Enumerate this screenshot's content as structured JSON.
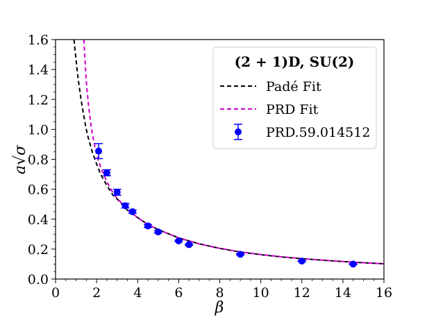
{
  "chart_data": {
    "type": "line",
    "title": "",
    "xlabel": "β",
    "ylabel": "a√σ",
    "xlim": [
      0,
      16
    ],
    "ylim": [
      0,
      1.6
    ],
    "x_ticks": [
      0,
      2,
      4,
      6,
      8,
      10,
      12,
      14,
      16
    ],
    "y_ticks": [
      0.0,
      0.2,
      0.4,
      0.6,
      0.8,
      1.0,
      1.2,
      1.4,
      1.6
    ],
    "x_tick_labels": [
      "0",
      "2",
      "4",
      "6",
      "8",
      "10",
      "12",
      "14",
      "16"
    ],
    "y_tick_labels": [
      "0.0",
      "0.2",
      "0.4",
      "0.6",
      "0.8",
      "1.0",
      "1.2",
      "1.4",
      "1.6"
    ],
    "grid": false,
    "legend_position": "top-right",
    "legend_title": "(2 + 1)D, SU(2)",
    "series": [
      {
        "name": "Padé Fit",
        "style": "dashed",
        "color": "#000000",
        "x": [
          0.9,
          1.0,
          1.1,
          1.2,
          1.3,
          1.4,
          1.5,
          1.6,
          1.8,
          2.0,
          2.2,
          2.5,
          2.8,
          3.0,
          3.5,
          4.0,
          4.5,
          5.0,
          6.0,
          7.0,
          8.0,
          9.0,
          10.0,
          11.0,
          12.0,
          13.0,
          14.0,
          15.0,
          16.0
        ],
        "y": [
          1.6,
          1.46,
          1.34,
          1.24,
          1.15,
          1.07,
          1.0,
          0.94,
          0.845,
          0.77,
          0.7,
          0.625,
          0.56,
          0.535,
          0.46,
          0.41,
          0.365,
          0.33,
          0.275,
          0.235,
          0.205,
          0.18,
          0.163,
          0.148,
          0.136,
          0.126,
          0.117,
          0.109,
          0.102
        ]
      },
      {
        "name": "PRD Fit",
        "style": "dashed",
        "color": "#cc00cc",
        "x": [
          1.38,
          1.45,
          1.5,
          1.6,
          1.7,
          1.8,
          1.9,
          2.0,
          2.2,
          2.5,
          2.8,
          3.0,
          3.5,
          4.0,
          4.5,
          5.0,
          6.0,
          7.0,
          8.0,
          9.0,
          10.0,
          11.0,
          12.0,
          13.0,
          14.0,
          15.0,
          16.0
        ],
        "y": [
          1.6,
          1.42,
          1.32,
          1.17,
          1.05,
          0.965,
          0.895,
          0.835,
          0.745,
          0.65,
          0.575,
          0.54,
          0.465,
          0.41,
          0.365,
          0.33,
          0.275,
          0.235,
          0.205,
          0.182,
          0.164,
          0.149,
          0.137,
          0.126,
          0.117,
          0.109,
          0.102
        ]
      },
      {
        "name": "PRD.59.014512",
        "style": "errorbar",
        "color": "#0000ff",
        "x": [
          2.1,
          2.5,
          3.0,
          3.4,
          3.75,
          4.5,
          5.0,
          6.0,
          6.5,
          9.0,
          12.0,
          14.5
        ],
        "y": [
          0.855,
          0.71,
          0.58,
          0.49,
          0.45,
          0.355,
          0.315,
          0.255,
          0.23,
          0.165,
          0.12,
          0.1
        ],
        "yerr": [
          0.05,
          0.02,
          0.02,
          0.015,
          0.01,
          0.01,
          0.008,
          0.005,
          0.005,
          0.004,
          0.003,
          0.003
        ]
      }
    ]
  },
  "colors": {
    "pade": "#000000",
    "prd_fit": "#cc00cc",
    "data": "#0000ff"
  }
}
